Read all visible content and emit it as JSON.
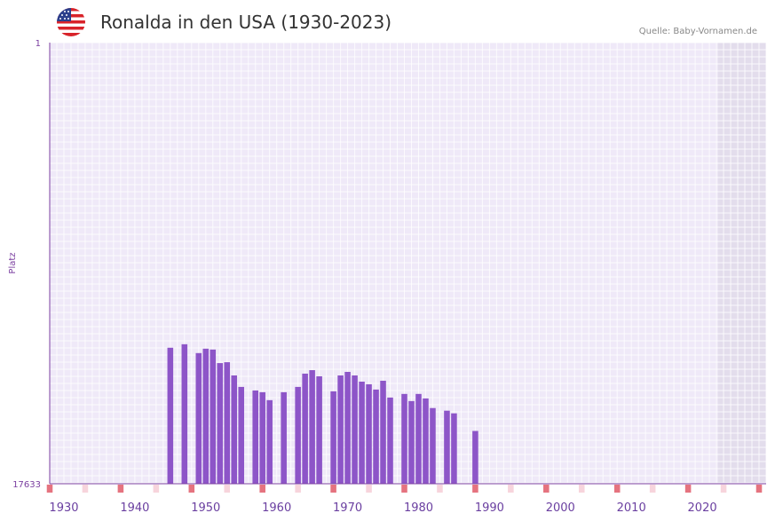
{
  "header": {
    "title": "Ronalda in den USA (1930-2023)",
    "source": "Quelle: Baby-Vornamen.de",
    "flag_icon": "us-flag-icon"
  },
  "colors": {
    "bar": "#8d55c8",
    "background": "#efe9f8",
    "grid": "#ffffff",
    "future_band": "#e3ddec",
    "axis": "#7b3fa0",
    "marker_strong": "#e5737f",
    "marker_light": "#f7d4dc"
  },
  "chart_data": {
    "type": "bar",
    "title": "Ronalda in den USA (1930-2023)",
    "ylabel": "Platz",
    "xlabel": "",
    "y_axis_reversed": true,
    "ylim": [
      1,
      17633
    ],
    "y_tick_labels": [
      "1",
      "17633"
    ],
    "xlim": [
      1928,
      2029
    ],
    "x_tick_labels": [
      "1930",
      "1940",
      "1950",
      "1960",
      "1970",
      "1980",
      "1990",
      "2000",
      "2010",
      "2020"
    ],
    "series": [
      {
        "name": "Platz",
        "x": [
          1945,
          1947,
          1949,
          1950,
          1951,
          1952,
          1953,
          1954,
          1955,
          1957,
          1958,
          1959,
          1961,
          1963,
          1964,
          1965,
          1966,
          1968,
          1969,
          1970,
          1971,
          1972,
          1973,
          1974,
          1975,
          1976,
          1978,
          1979,
          1980,
          1981,
          1982,
          1984,
          1985,
          1988
        ],
        "values": [
          12198,
          12058,
          12411,
          12235,
          12270,
          12811,
          12776,
          13305,
          13763,
          13905,
          13975,
          14293,
          13975,
          13763,
          13233,
          13093,
          13339,
          13939,
          13305,
          13163,
          13305,
          13553,
          13657,
          13869,
          13517,
          14188,
          14044,
          14329,
          14044,
          14223,
          14608,
          14713,
          14819,
          15524
        ]
      }
    ]
  }
}
